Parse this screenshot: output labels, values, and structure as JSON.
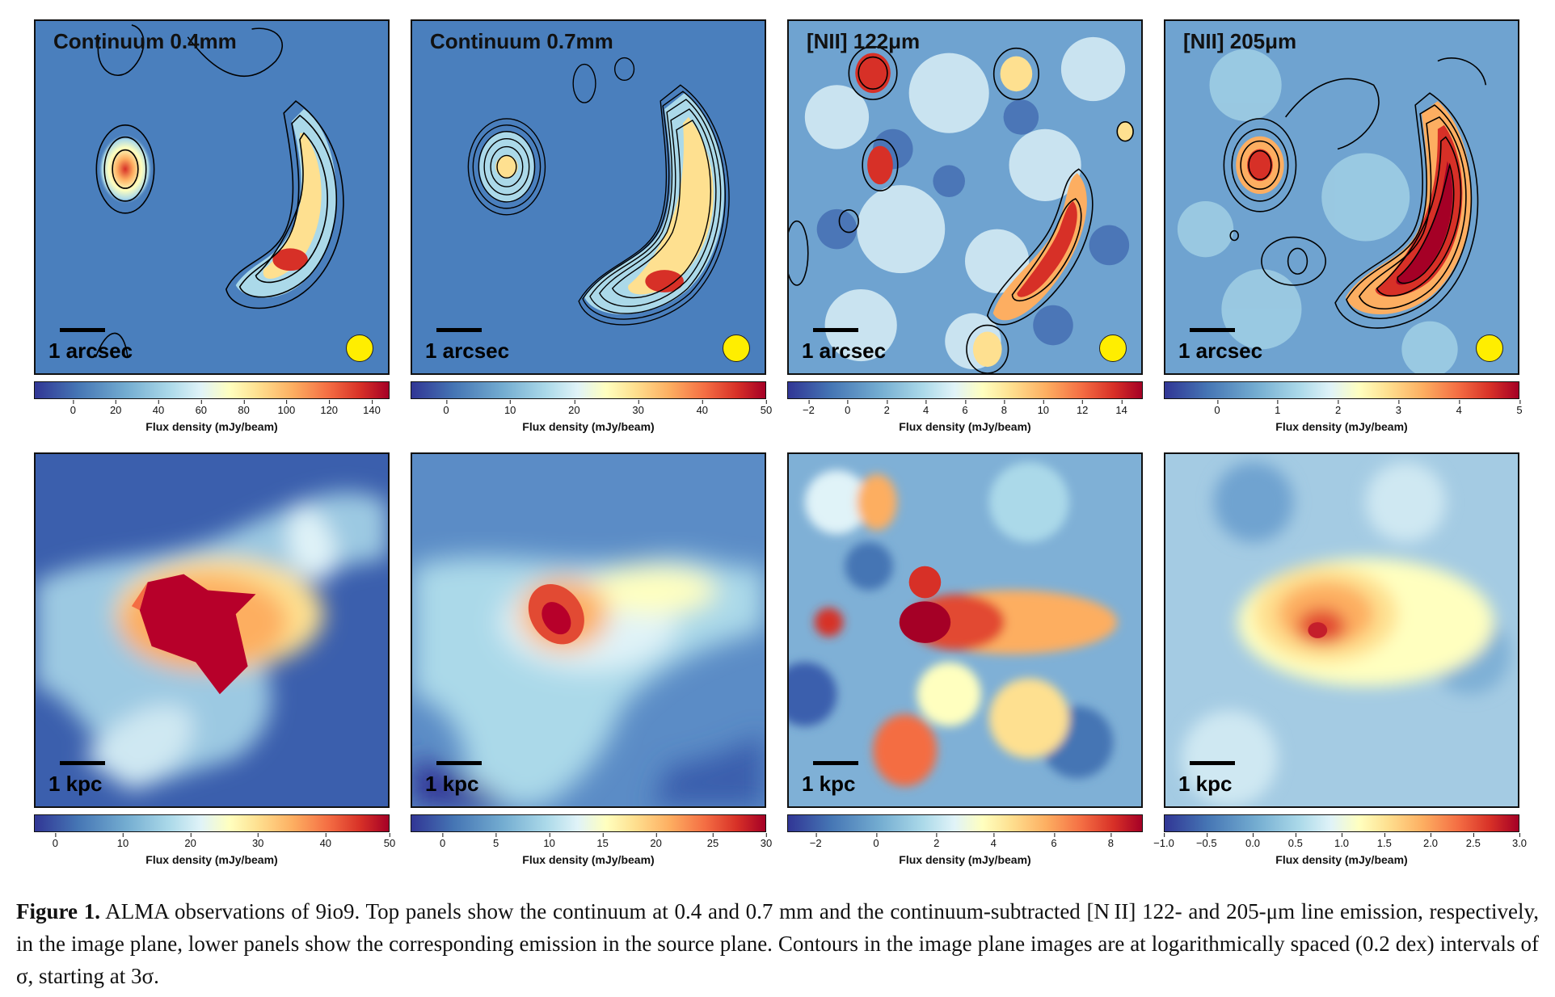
{
  "figure": {
    "top_panels": [
      {
        "title": "Continuum 0.4mm",
        "scale_label": "1 arcsec",
        "cbar_label": "Flux density (mJy/beam)",
        "ticks": [
          {
            "v": "0",
            "p": 0.11
          },
          {
            "v": "20",
            "p": 0.23
          },
          {
            "v": "40",
            "p": 0.35
          },
          {
            "v": "60",
            "p": 0.47
          },
          {
            "v": "80",
            "p": 0.59
          },
          {
            "v": "100",
            "p": 0.71
          },
          {
            "v": "120",
            "p": 0.83
          },
          {
            "v": "140",
            "p": 0.95
          }
        ]
      },
      {
        "title": "Continuum 0.7mm",
        "scale_label": "1 arcsec",
        "cbar_label": "Flux density (mJy/beam)",
        "ticks": [
          {
            "v": "0",
            "p": 0.1
          },
          {
            "v": "10",
            "p": 0.28
          },
          {
            "v": "20",
            "p": 0.46
          },
          {
            "v": "30",
            "p": 0.64
          },
          {
            "v": "40",
            "p": 0.82
          },
          {
            "v": "50",
            "p": 1.0
          }
        ]
      },
      {
        "title": "[NII] 122μm",
        "scale_label": "1 arcsec",
        "cbar_label": "Flux density (mJy/beam)",
        "ticks": [
          {
            "v": "−2",
            "p": 0.06
          },
          {
            "v": "0",
            "p": 0.17
          },
          {
            "v": "2",
            "p": 0.28
          },
          {
            "v": "4",
            "p": 0.39
          },
          {
            "v": "6",
            "p": 0.5
          },
          {
            "v": "8",
            "p": 0.61
          },
          {
            "v": "10",
            "p": 0.72
          },
          {
            "v": "12",
            "p": 0.83
          },
          {
            "v": "14",
            "p": 0.94
          }
        ]
      },
      {
        "title": "[NII] 205μm",
        "scale_label": "1 arcsec",
        "cbar_label": "Flux density (mJy/beam)",
        "ticks": [
          {
            "v": "0",
            "p": 0.15
          },
          {
            "v": "1",
            "p": 0.32
          },
          {
            "v": "2",
            "p": 0.49
          },
          {
            "v": "3",
            "p": 0.66
          },
          {
            "v": "4",
            "p": 0.83
          },
          {
            "v": "5",
            "p": 1.0
          }
        ]
      }
    ],
    "bottom_panels": [
      {
        "scale_label": "1 kpc",
        "cbar_label": "Flux density (mJy/beam)",
        "ticks": [
          {
            "v": "0",
            "p": 0.06
          },
          {
            "v": "10",
            "p": 0.25
          },
          {
            "v": "20",
            "p": 0.44
          },
          {
            "v": "30",
            "p": 0.63
          },
          {
            "v": "40",
            "p": 0.82
          },
          {
            "v": "50",
            "p": 1.0
          }
        ]
      },
      {
        "scale_label": "1 kpc",
        "cbar_label": "Flux density (mJy/beam)",
        "ticks": [
          {
            "v": "0",
            "p": 0.09
          },
          {
            "v": "5",
            "p": 0.24
          },
          {
            "v": "10",
            "p": 0.39
          },
          {
            "v": "15",
            "p": 0.54
          },
          {
            "v": "20",
            "p": 0.69
          },
          {
            "v": "25",
            "p": 0.85
          },
          {
            "v": "30",
            "p": 1.0
          }
        ]
      },
      {
        "scale_label": "1 kpc",
        "cbar_label": "Flux density (mJy/beam)",
        "ticks": [
          {
            "v": "−2",
            "p": 0.08
          },
          {
            "v": "0",
            "p": 0.25
          },
          {
            "v": "2",
            "p": 0.42
          },
          {
            "v": "4",
            "p": 0.58
          },
          {
            "v": "6",
            "p": 0.75
          },
          {
            "v": "8",
            "p": 0.91
          }
        ]
      },
      {
        "scale_label": "1 kpc",
        "cbar_label": "Flux density (mJy/beam)",
        "ticks": [
          {
            "v": "−1.0",
            "p": 0.0
          },
          {
            "v": "−0.5",
            "p": 0.12
          },
          {
            "v": "0.0",
            "p": 0.25
          },
          {
            "v": "0.5",
            "p": 0.37
          },
          {
            "v": "1.0",
            "p": 0.5
          },
          {
            "v": "1.5",
            "p": 0.62
          },
          {
            "v": "2.0",
            "p": 0.75
          },
          {
            "v": "2.5",
            "p": 0.87
          },
          {
            "v": "3.0",
            "p": 1.0
          }
        ]
      }
    ]
  },
  "caption": {
    "label": "Figure 1.",
    "text": "ALMA observations of 9io9. Top panels show the continuum at 0.4 and 0.7 mm and the continuum-subtracted [N II] 122- and 205-μm line emission, respectively, in the image plane, lower panels show the corresponding emission in the source plane. Contours in the image plane images are at logarithmically spaced (0.2 dex) intervals of σ, starting at 3σ."
  },
  "colors": {
    "low": "#313695",
    "mid": "#ffffbf",
    "high": "#a50026"
  }
}
